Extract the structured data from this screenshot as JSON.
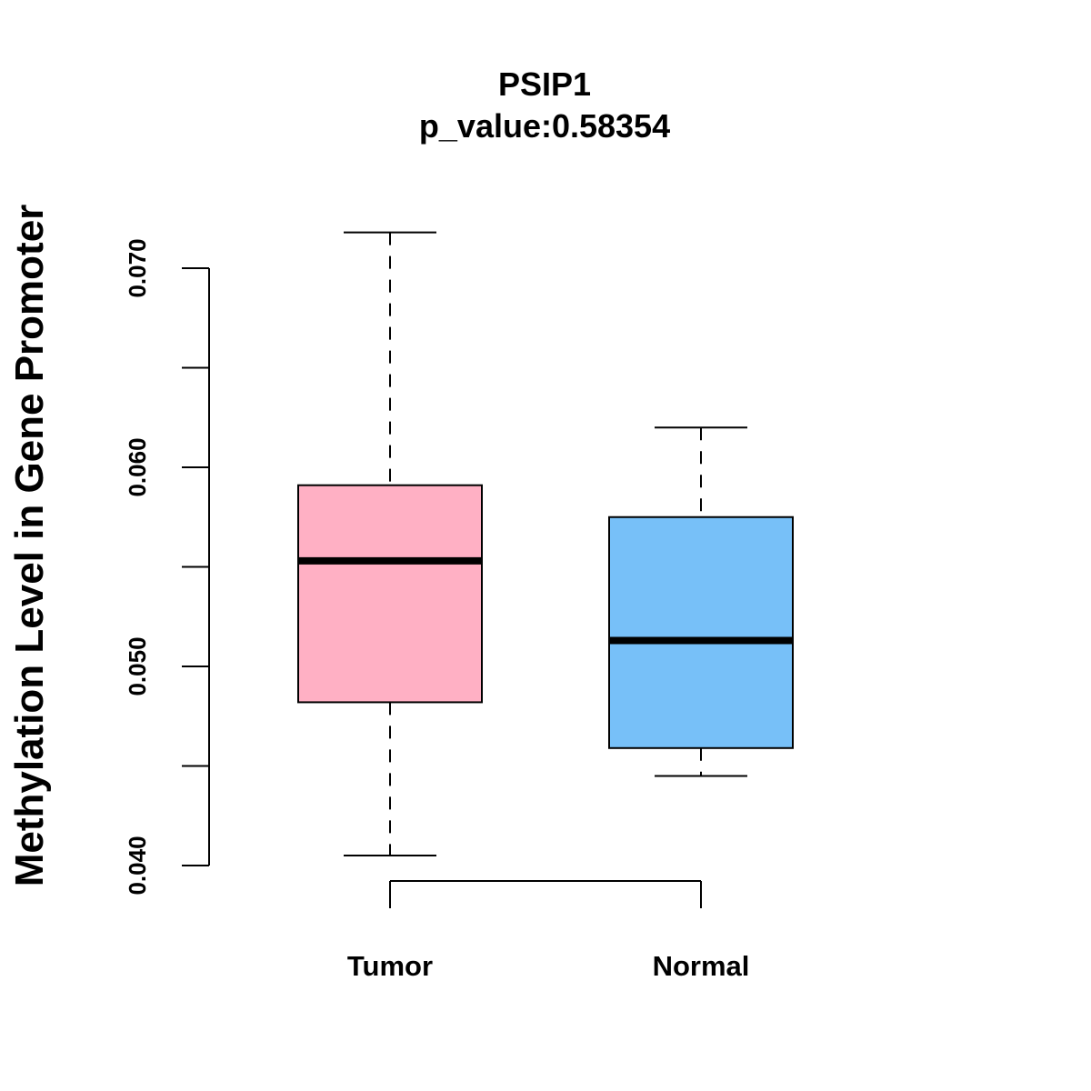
{
  "chart_data": {
    "type": "boxplot",
    "title": "PSIP1",
    "subtitle": "p_value:0.58354",
    "xlabel": "",
    "ylabel": "Methylation Level in Gene Promoter",
    "ylim": [
      0.04,
      0.07
    ],
    "yticks": [
      0.04,
      0.045,
      0.05,
      0.055,
      0.06,
      0.065,
      0.07
    ],
    "ytick_labels": [
      "0.040",
      "",
      "0.050",
      "",
      "0.060",
      "",
      "0.070"
    ],
    "categories": [
      "Tumor",
      "Normal"
    ],
    "boxes": [
      {
        "name": "Tumor",
        "min": 0.0405,
        "q1": 0.0482,
        "median": 0.0553,
        "q3": 0.0591,
        "max": 0.0718,
        "color": "#FFB0C4"
      },
      {
        "name": "Normal",
        "min": 0.0445,
        "q1": 0.0459,
        "median": 0.0513,
        "q3": 0.0575,
        "max": 0.062,
        "color": "#77C0F8"
      }
    ],
    "grid": false,
    "legend": "none"
  }
}
